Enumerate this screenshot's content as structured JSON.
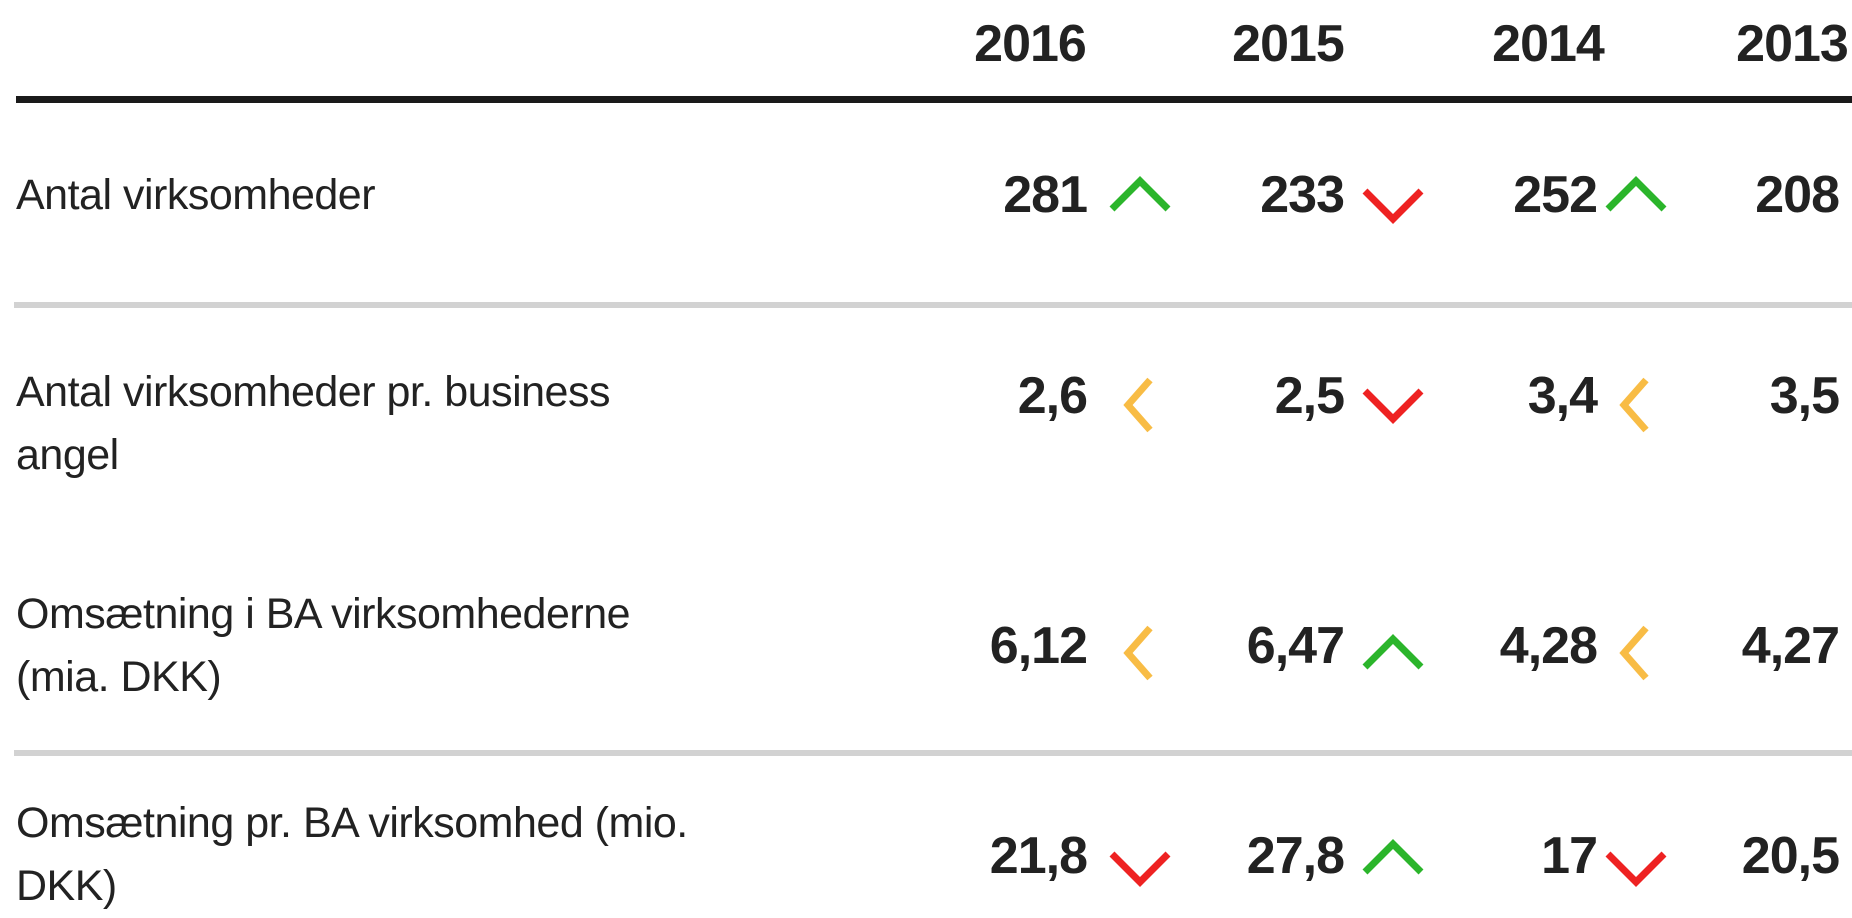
{
  "header": {
    "columns": [
      "2016",
      "2015",
      "2014",
      "2013"
    ]
  },
  "rows": [
    {
      "label": "Antal virksomheder",
      "cells": [
        "281",
        "233",
        "252",
        "208"
      ]
    },
    {
      "label": "Antal virksomheder pr. business angel",
      "cells": [
        "2,6",
        "2,5",
        "3,4",
        "3,5"
      ]
    },
    {
      "label": "Omsætning i BA virksomhederne (mia. DKK)",
      "cells": [
        "6,12",
        "6,47",
        "4,28",
        "4,27"
      ]
    },
    {
      "label": "Omsætning pr. BA virksomhed (mio. DKK)",
      "cells": [
        "21,8",
        "27,8",
        "17",
        "20,5"
      ]
    }
  ]
}
